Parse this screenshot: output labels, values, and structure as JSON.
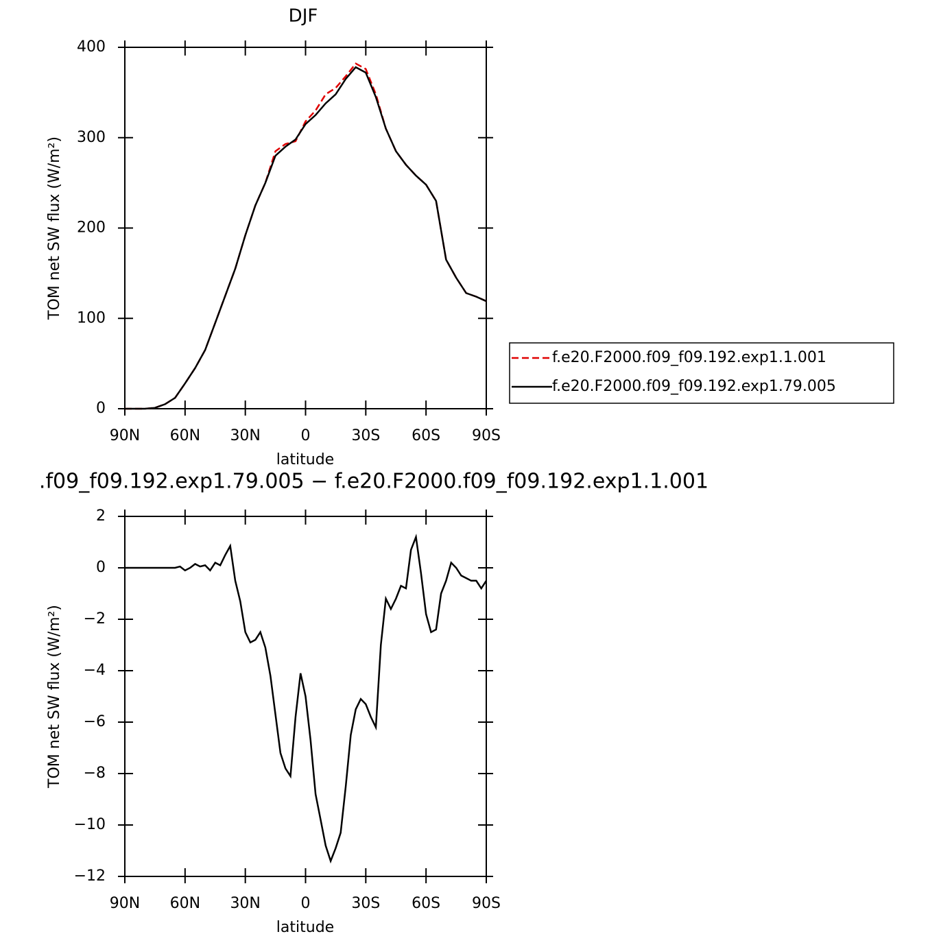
{
  "chart_data": [
    {
      "type": "line",
      "title": "DJF",
      "xlabel": "latitude",
      "ylabel": "TOM net SW flux (W/m²)",
      "x": [
        90,
        85,
        80,
        75,
        70,
        65,
        60,
        55,
        50,
        45,
        40,
        35,
        30,
        25,
        20,
        15,
        10,
        5,
        0,
        -5,
        -10,
        -15,
        -20,
        -25,
        -30,
        -35,
        -40,
        -45,
        -50,
        -55,
        -60,
        -65,
        -70,
        -75,
        -80,
        -85,
        -90
      ],
      "xlim": [
        90,
        -90
      ],
      "xticks": [
        {
          "value": 90,
          "label": "90N"
        },
        {
          "value": 60,
          "label": "60N"
        },
        {
          "value": 30,
          "label": "30N"
        },
        0,
        {
          "value": -30,
          "label": "30S"
        },
        {
          "value": -60,
          "label": "60S"
        },
        {
          "value": -90,
          "label": "90S"
        }
      ],
      "ylim": [
        0,
        400
      ],
      "yticks": [
        0,
        100,
        200,
        300,
        400
      ],
      "legend": "right",
      "series": [
        {
          "name": "f.e20.F2000.f09_f09.192.exp1.1.001",
          "color": "#e00000",
          "dashed": true,
          "values": [
            0,
            0,
            0,
            1,
            5,
            12,
            28,
            45,
            65,
            95,
            125,
            155,
            192,
            225,
            250,
            285,
            293,
            296,
            318,
            330,
            348,
            355,
            368,
            382,
            376,
            348,
            310,
            285,
            270,
            258,
            248,
            230,
            165,
            145,
            128,
            124,
            119
          ]
        },
        {
          "name": "f.e20.F2000.f09_f09.192.exp1.79.005",
          "color": "#000000",
          "dashed": false,
          "values": [
            0,
            0,
            0,
            1,
            5,
            12,
            28,
            45,
            65,
            95,
            125,
            155,
            192,
            225,
            250,
            280,
            290,
            298,
            315,
            325,
            338,
            348,
            365,
            378,
            372,
            345,
            310,
            285,
            270,
            258,
            248,
            230,
            165,
            145,
            128,
            124,
            119
          ]
        }
      ]
    },
    {
      "type": "line",
      "title": ".f09_f09.192.exp1.79.005 − f.e20.F2000.f09_f09.192.exp1.1.001",
      "xlabel": "latitude",
      "ylabel": "TOM net SW flux (W/m²)",
      "x": [
        90,
        87.5,
        85,
        82.5,
        80,
        77.5,
        75,
        72.5,
        70,
        67.5,
        65,
        62.5,
        60,
        57.5,
        55,
        52.5,
        50,
        47.5,
        45,
        42.5,
        40,
        37.5,
        35,
        32.5,
        30,
        27.5,
        25,
        22.5,
        20,
        17.5,
        15,
        12.5,
        10,
        7.5,
        5,
        2.5,
        0,
        -2.5,
        -5,
        -7.5,
        -10,
        -12.5,
        -15,
        -17.5,
        -20,
        -22.5,
        -25,
        -27.5,
        -30,
        -32.5,
        -35,
        -37.5,
        -40,
        -42.5,
        -45,
        -47.5,
        -50,
        -52.5,
        -55,
        -57.5,
        -60,
        -62.5,
        -65,
        -67.5,
        -70,
        -72.5,
        -75,
        -77.5,
        -80,
        -82.5,
        -85,
        -87.5,
        -90
      ],
      "xlim": [
        90,
        -90
      ],
      "xticks": [
        {
          "value": 90,
          "label": "90N"
        },
        {
          "value": 60,
          "label": "60N"
        },
        {
          "value": 30,
          "label": "30N"
        },
        0,
        {
          "value": -30,
          "label": "30S"
        },
        {
          "value": -60,
          "label": "60S"
        },
        {
          "value": -90,
          "label": "90S"
        }
      ],
      "ylim": [
        -12,
        2
      ],
      "yticks": [
        {
          "value": -12,
          "label": "−12"
        },
        {
          "value": -10,
          "label": "−10"
        },
        {
          "value": -8,
          "label": "−8"
        },
        {
          "value": -6,
          "label": "−6"
        },
        {
          "value": -4,
          "label": "−4"
        },
        {
          "value": -2,
          "label": "−2"
        },
        0,
        2
      ],
      "series": [
        {
          "color": "#000000",
          "dashed": false,
          "values": [
            0,
            0,
            0,
            0,
            0,
            0,
            0,
            0,
            0,
            0,
            0,
            0.05,
            -0.1,
            0,
            0.15,
            0.05,
            0.1,
            -0.1,
            0.2,
            0.1,
            0.5,
            0.85,
            -0.5,
            -1.3,
            -2.5,
            -2.9,
            -2.8,
            -2.5,
            -3.1,
            -4.2,
            -5.7,
            -7.2,
            -7.8,
            -8.1,
            -5.8,
            -4.1,
            -5.0,
            -6.7,
            -8.8,
            -9.8,
            -10.8,
            -11.4,
            -10.9,
            -10.3,
            -8.5,
            -6.5,
            -5.5,
            -5.1,
            -5.3,
            -5.8,
            -6.2,
            -3.0,
            -1.2,
            -1.6,
            -1.2,
            -0.7,
            -0.8,
            0.7,
            1.2,
            -0.2,
            -1.8,
            -2.5,
            -2.4,
            -1.0,
            -0.5,
            0.2,
            0.0,
            -0.3,
            -0.4,
            -0.5,
            -0.5,
            -0.8,
            -0.5
          ]
        }
      ]
    }
  ]
}
